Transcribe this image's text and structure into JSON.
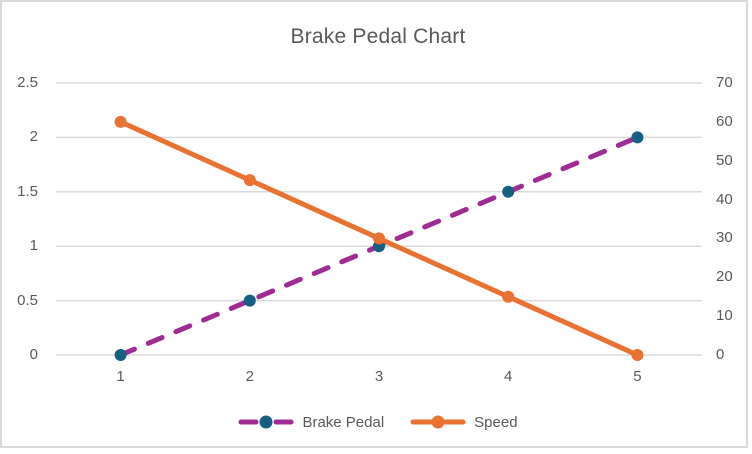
{
  "window": {
    "background_color": "#FFFFFF",
    "border_color": "#D9D9D9"
  },
  "chart_data": {
    "type": "line",
    "title": "Brake Pedal Chart",
    "categories": [
      "1",
      "2",
      "3",
      "4",
      "5"
    ],
    "series": [
      {
        "name": "Brake Pedal",
        "axis": "left",
        "style": "dashed",
        "line_color": "#A02B93",
        "marker_color": "#156082",
        "values": [
          0,
          0.5,
          1,
          1.5,
          2
        ]
      },
      {
        "name": "Speed",
        "axis": "right",
        "style": "solid",
        "line_color": "#E97132",
        "marker_color": "#E97132",
        "values": [
          60,
          45,
          30,
          15,
          0
        ]
      }
    ],
    "left_axis": {
      "min": 0,
      "max": 2.5,
      "ticks": [
        "0",
        "0.5",
        "1",
        "1.5",
        "2",
        "2.5"
      ]
    },
    "right_axis": {
      "min": 0,
      "max": 70,
      "ticks": [
        "0",
        "10",
        "20",
        "30",
        "40",
        "50",
        "60",
        "70"
      ]
    },
    "x_axis": {
      "labels": [
        "1",
        "2",
        "3",
        "4",
        "5"
      ]
    },
    "grid": true,
    "legend_position": "bottom",
    "legend_entries": [
      "Brake Pedal",
      "Speed"
    ],
    "colors": {
      "text": "#595959",
      "gridline": "#D9D9D9"
    }
  }
}
